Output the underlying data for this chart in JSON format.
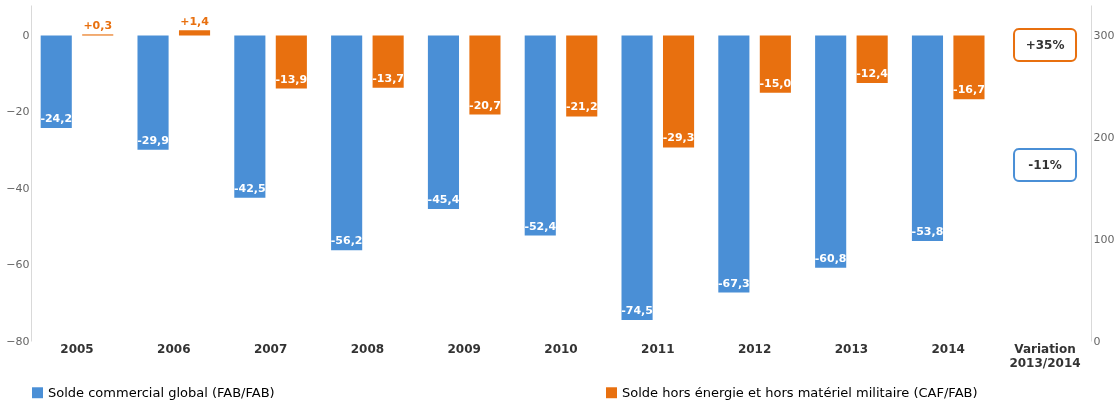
{
  "chart_data": {
    "type": "bar",
    "categories": [
      "2005",
      "2006",
      "2007",
      "2008",
      "2009",
      "2010",
      "2011",
      "2012",
      "2013",
      "2014",
      "Variation 2013/2014"
    ],
    "series": [
      {
        "name": "Solde commercial global (FAB/FAB)",
        "color": "#4a8fd6",
        "values": [
          -24.2,
          -29.9,
          -42.5,
          -56.2,
          -45.4,
          -52.4,
          -74.5,
          -67.3,
          -60.8,
          -53.8,
          null
        ],
        "value_labels": [
          "-24,2",
          "-29,9",
          "-42,5",
          "-56,2",
          "-45,4",
          "-52,4",
          "-74,5",
          "-67,3",
          "-60,8",
          "-53,8",
          null
        ]
      },
      {
        "name": "Solde hors énergie et hors matériel militaire (CAF/FAB)",
        "color": "#e8700f",
        "values": [
          0.3,
          1.4,
          -13.9,
          -13.7,
          -20.7,
          -21.2,
          -29.3,
          -15.0,
          -12.4,
          -16.7,
          null
        ],
        "value_labels": [
          "+0,3",
          "+1,4",
          "-13,9",
          "-13,7",
          "-20,7",
          "-21,2",
          "-29,3",
          "-15,0",
          "-12,4",
          "-16,7",
          null
        ]
      }
    ],
    "ylim": [
      -80,
      8
    ],
    "yticks": [
      0,
      -20,
      -40,
      -60,
      -80
    ],
    "y2lim": [
      0,
      330
    ],
    "y2ticks": [
      0,
      100,
      200,
      300
    ],
    "annotations": [
      "+35%",
      "-11%"
    ],
    "grid": false,
    "legend": "bottom"
  }
}
